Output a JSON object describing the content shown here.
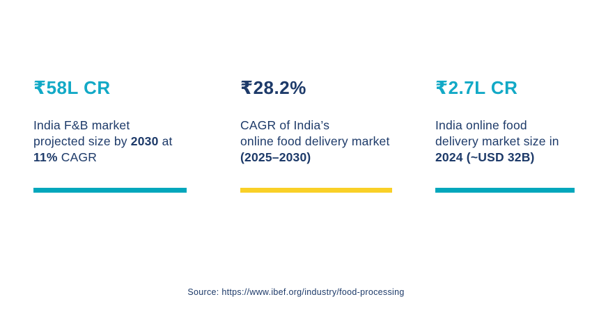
{
  "colors": {
    "background": "#ffffff",
    "heading_teal": "#12a9c6",
    "bar_teal": "#03a7bc",
    "bar_yellow": "#f9d027",
    "navy": "#1d3a69"
  },
  "stats": [
    {
      "value": "₹58L CR",
      "accent": "teal",
      "desc_line1": "India F&B market",
      "desc_line2_pre": "projected size by ",
      "desc_line2_bold": "2030",
      "desc_line2_post": " at",
      "desc_line3_bold": "11%",
      "desc_line3_post": " CAGR"
    },
    {
      "value": "₹28.2%",
      "accent": "yellow",
      "desc_line1": "CAGR of India’s",
      "desc_line2_pre": "online food delivery market",
      "desc_line2_bold": "",
      "desc_line2_post": "",
      "desc_line3_bold": "(2025–2030)",
      "desc_line3_post": ""
    },
    {
      "value": "₹2.7L CR",
      "accent": "teal",
      "desc_line1": "India online food",
      "desc_line2_pre": "delivery market size in",
      "desc_line2_bold": "",
      "desc_line2_post": "",
      "desc_line3_bold": "2024 (~USD 32B)",
      "desc_line3_post": ""
    }
  ],
  "source": "Source: https://www.ibef.org/industry/food-processing"
}
